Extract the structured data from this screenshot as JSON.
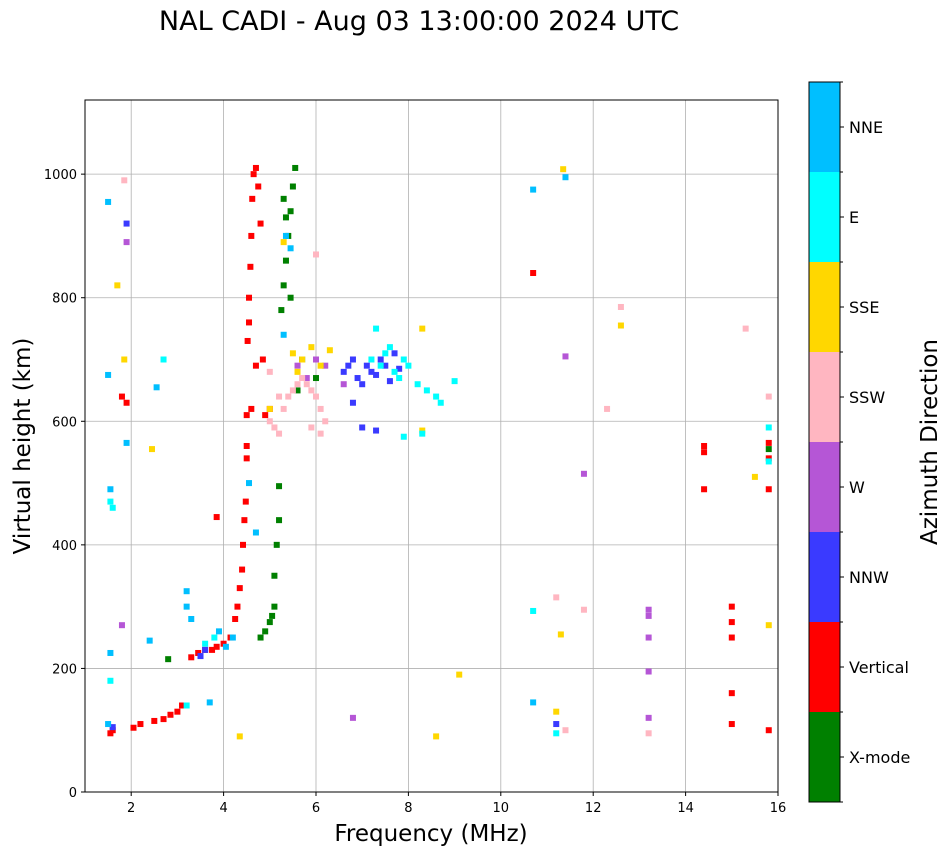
{
  "chart_data": {
    "type": "scatter",
    "title": "NAL CADI - Aug 03 13:00:00 2024 UTC",
    "xlabel": "Frequency (MHz)",
    "ylabel": "Virtual height (km)",
    "xlim": [
      1,
      16
    ],
    "ylim": [
      0,
      1120
    ],
    "xticks": [
      2,
      4,
      6,
      8,
      10,
      12,
      14,
      16
    ],
    "yticks": [
      0,
      200,
      400,
      600,
      800,
      1000
    ],
    "grid": true,
    "colorbar": {
      "title": "Azimuth Direction",
      "categories": [
        {
          "name": "X-mode",
          "color": "#008000"
        },
        {
          "name": "Vertical",
          "color": "#ff0000"
        },
        {
          "name": "NNW",
          "color": "#3a3aff"
        },
        {
          "name": "W",
          "color": "#b556d6"
        },
        {
          "name": "SSW",
          "color": "#ffb6c1"
        },
        {
          "name": "SSE",
          "color": "#ffd700"
        },
        {
          "name": "E",
          "color": "#00ffff"
        },
        {
          "name": "NNE",
          "color": "#00bfff"
        }
      ]
    },
    "series": [
      {
        "name": "Vertical",
        "color": "#ff0000",
        "x": [
          1.55,
          1.6,
          2.05,
          2.2,
          2.5,
          2.7,
          2.85,
          3.0,
          3.1,
          3.3,
          3.45,
          3.6,
          3.75,
          3.85,
          4.0,
          4.15,
          4.25,
          4.3,
          4.35,
          4.4,
          4.42,
          4.45,
          4.48,
          4.5,
          4.5,
          4.52,
          4.55,
          4.55,
          4.58,
          4.6,
          4.62,
          4.65,
          4.7,
          4.75,
          4.8,
          4.5,
          4.6,
          4.7,
          4.85,
          4.9,
          5.0,
          3.85,
          1.8,
          1.9,
          10.7,
          14.4,
          14.4,
          14.4,
          15.0,
          15.0,
          15.0,
          15.0,
          15.0,
          15.8,
          15.8,
          15.8,
          15.8
        ],
        "y": [
          95,
          100,
          104,
          110,
          115,
          118,
          125,
          130,
          140,
          218,
          225,
          230,
          230,
          235,
          240,
          250,
          280,
          300,
          330,
          360,
          400,
          440,
          470,
          540,
          560,
          730,
          760,
          800,
          850,
          900,
          960,
          1000,
          1010,
          980,
          920,
          610,
          620,
          690,
          700,
          610,
          620,
          445,
          640,
          630,
          840,
          560,
          490,
          550,
          300,
          275,
          250,
          160,
          110,
          565,
          490,
          100,
          540
        ]
      },
      {
        "name": "X-mode",
        "color": "#008000",
        "x": [
          2.8,
          4.8,
          4.9,
          5.0,
          5.05,
          5.1,
          5.1,
          5.15,
          5.2,
          5.2,
          5.25,
          5.3,
          5.35,
          5.4,
          5.45,
          5.5,
          5.55,
          5.35,
          5.3,
          5.45,
          5.6,
          5.7,
          6.0,
          15.8
        ],
        "y": [
          215,
          250,
          260,
          275,
          285,
          300,
          350,
          400,
          440,
          495,
          780,
          820,
          860,
          900,
          940,
          980,
          1010,
          930,
          960,
          800,
          650,
          700,
          670,
          555
        ]
      },
      {
        "name": "NNW",
        "color": "#3a3aff",
        "x": [
          6.6,
          6.7,
          6.8,
          6.9,
          7.0,
          7.1,
          7.2,
          7.3,
          7.4,
          7.5,
          7.6,
          7.7,
          7.8,
          6.8,
          7.0,
          7.3,
          3.5,
          3.6,
          1.6,
          11.2,
          1.9
        ],
        "y": [
          680,
          690,
          700,
          670,
          660,
          690,
          680,
          675,
          700,
          690,
          665,
          710,
          685,
          630,
          590,
          585,
          220,
          230,
          105,
          110,
          920
        ]
      },
      {
        "name": "W",
        "color": "#b556d6",
        "x": [
          1.9,
          5.6,
          5.8,
          6.0,
          6.2,
          6.6,
          6.8,
          11.4,
          11.8,
          13.2,
          13.2,
          13.2,
          13.2,
          13.2,
          1.8
        ],
        "y": [
          890,
          690,
          670,
          700,
          690,
          660,
          120,
          705,
          515,
          295,
          285,
          250,
          195,
          120,
          270
        ]
      },
      {
        "name": "SSW",
        "color": "#ffb6c1",
        "x": [
          5.0,
          5.1,
          5.2,
          5.3,
          5.4,
          5.5,
          5.6,
          5.7,
          5.8,
          5.9,
          6.0,
          6.1,
          6.2,
          5.0,
          5.2,
          5.9,
          6.1,
          11.2,
          11.8,
          12.3,
          12.6,
          15.3,
          15.8,
          1.85,
          13.2,
          11.4,
          6.0
        ],
        "y": [
          600,
          590,
          580,
          620,
          640,
          650,
          660,
          670,
          660,
          650,
          640,
          620,
          600,
          680,
          640,
          590,
          580,
          315,
          295,
          620,
          785,
          750,
          640,
          990,
          95,
          100,
          870
        ]
      },
      {
        "name": "SSE",
        "color": "#ffd700",
        "x": [
          1.7,
          1.85,
          2.45,
          5.3,
          5.5,
          5.6,
          5.7,
          5.9,
          6.1,
          6.3,
          8.3,
          8.3,
          8.6,
          9.1,
          11.2,
          11.3,
          11.35,
          12.6,
          15.5,
          15.8,
          5.0,
          4.35
        ],
        "y": [
          820,
          700,
          555,
          890,
          710,
          680,
          700,
          720,
          690,
          715,
          750,
          585,
          90,
          190,
          130,
          255,
          1008,
          755,
          510,
          270,
          620,
          90
        ]
      },
      {
        "name": "E",
        "color": "#00ffff",
        "x": [
          7.2,
          7.4,
          7.5,
          7.6,
          7.7,
          7.8,
          7.9,
          8.0,
          8.2,
          8.4,
          8.6,
          8.7,
          9.0,
          7.3,
          7.9,
          8.3,
          11.2,
          10.7,
          1.6,
          2.7,
          1.55,
          15.8,
          15.8,
          3.6,
          3.8,
          1.55,
          3.2
        ],
        "y": [
          700,
          690,
          710,
          720,
          680,
          670,
          700,
          690,
          660,
          650,
          640,
          630,
          665,
          750,
          575,
          580,
          95,
          293,
          460,
          700,
          180,
          590,
          535,
          240,
          250,
          470,
          140
        ]
      },
      {
        "name": "NNE",
        "color": "#00bfff",
        "x": [
          1.5,
          1.5,
          1.55,
          1.9,
          2.4,
          2.55,
          3.2,
          3.2,
          3.3,
          3.7,
          3.9,
          4.05,
          4.2,
          4.55,
          4.7,
          5.3,
          5.35,
          5.45,
          10.7,
          10.7,
          11.4,
          1.55,
          1.5
        ],
        "y": [
          955,
          675,
          490,
          565,
          245,
          655,
          325,
          300,
          280,
          145,
          260,
          235,
          250,
          500,
          420,
          740,
          900,
          880,
          975,
          145,
          995,
          225,
          110
        ]
      }
    ]
  }
}
